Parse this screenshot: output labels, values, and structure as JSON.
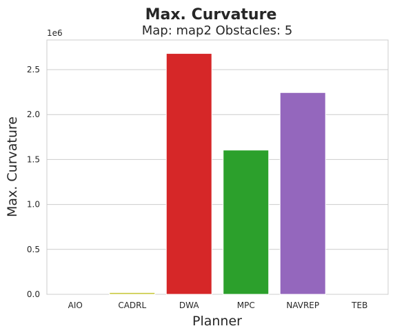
{
  "chart_data": {
    "type": "bar",
    "title": "Max. Curvature",
    "subtitle": "Map: map2 Obstacles: 5",
    "xlabel": "Planner",
    "ylabel": "Max. Curvature",
    "y_offset_label": "1e6",
    "categories": [
      "AIO",
      "CADRL",
      "DWA",
      "MPC",
      "NAVREP",
      "TEB"
    ],
    "values": [
      0,
      20000,
      2680000,
      1605000,
      2245000,
      0
    ],
    "colors": [
      "#1f77b4",
      "#c8c83c",
      "#d62728",
      "#2ca02c",
      "#9467bd",
      "#8c564b"
    ],
    "ylim": [
      0,
      2830000
    ],
    "yticks": [
      0,
      500000,
      1000000,
      1500000,
      2000000,
      2500000
    ],
    "ytick_labels": [
      "0.0",
      "0.5",
      "1.0",
      "1.5",
      "2.0",
      "2.5"
    ],
    "grid": true,
    "legend": "none"
  }
}
